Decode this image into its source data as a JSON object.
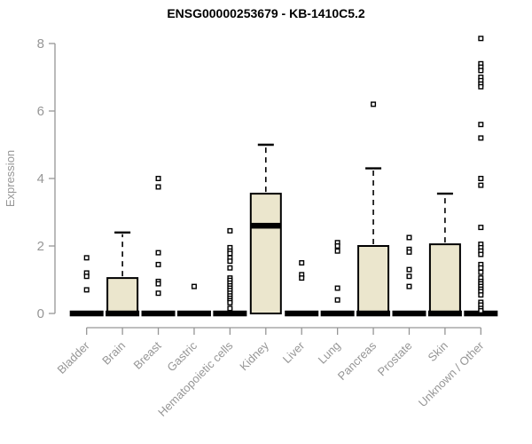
{
  "window": {
    "background": "#ffffff"
  },
  "chart_data": {
    "type": "boxplot",
    "title": "ENSG00000253679 - KB-1410C5.2",
    "ylabel": "Expression",
    "xlabel": "",
    "yticks": [
      0,
      2,
      4,
      6,
      8
    ],
    "ylim": [
      0,
      8.4
    ],
    "grid": false,
    "legend": false,
    "colors": {
      "box_fill": "#ebe6cd",
      "box_stroke": "#000000",
      "median": "#000000",
      "outlier_stroke": "#000000",
      "outlier_fill": "#ffffff",
      "axis": "#969696",
      "tick_label": "#969696",
      "title": "#000000"
    },
    "categories": [
      "Bladder",
      "Brain",
      "Breast",
      "Gastric",
      "Hematopoietic cells",
      "Kidney",
      "Liver",
      "Lung",
      "Pancreas",
      "Prostate",
      "Skin",
      "Unknown / Other"
    ],
    "boxes": [
      {
        "category": "Bladder",
        "q1": 0,
        "median": 0,
        "q3": 0,
        "whisker_low": 0,
        "whisker_high": 0,
        "outliers": [
          1.65,
          1.2,
          1.1,
          0.7
        ]
      },
      {
        "category": "Brain",
        "q1": 0,
        "median": 0,
        "q3": 1.05,
        "whisker_low": 0,
        "whisker_high": 2.4,
        "outliers": []
      },
      {
        "category": "Breast",
        "q1": 0,
        "median": 0,
        "q3": 0,
        "whisker_low": 0,
        "whisker_high": 0,
        "outliers": [
          4.0,
          3.75,
          1.8,
          1.45,
          0.95,
          0.88,
          0.6
        ]
      },
      {
        "category": "Gastric",
        "q1": 0,
        "median": 0,
        "q3": 0,
        "whisker_low": 0,
        "whisker_high": 0,
        "outliers": [
          0.8
        ]
      },
      {
        "category": "Hematopoietic cells",
        "q1": 0,
        "median": 0,
        "q3": 0,
        "whisker_low": 0,
        "whisker_high": 0,
        "outliers": [
          2.45,
          1.95,
          1.85,
          1.78,
          1.65,
          1.55,
          1.35,
          1.05,
          0.98,
          0.9,
          0.82,
          0.75,
          0.68,
          0.6,
          0.52,
          0.45,
          0.38,
          0.32,
          0.15
        ]
      },
      {
        "category": "Kidney",
        "q1": 0,
        "median": 2.6,
        "q3": 3.55,
        "whisker_low": 0,
        "whisker_high": 5.0,
        "outliers": []
      },
      {
        "category": "Liver",
        "q1": 0,
        "median": 0,
        "q3": 0,
        "whisker_low": 0,
        "whisker_high": 0,
        "outliers": [
          1.5,
          1.15,
          1.05
        ]
      },
      {
        "category": "Lung",
        "q1": 0,
        "median": 0,
        "q3": 0,
        "whisker_low": 0,
        "whisker_high": 0,
        "outliers": [
          2.1,
          2.0,
          1.85,
          0.75,
          0.4
        ]
      },
      {
        "category": "Pancreas",
        "q1": 0,
        "median": 0,
        "q3": 2.0,
        "whisker_low": 0,
        "whisker_high": 4.3,
        "outliers": [
          6.2
        ]
      },
      {
        "category": "Prostate",
        "q1": 0,
        "median": 0,
        "q3": 0,
        "whisker_low": 0,
        "whisker_high": 0,
        "outliers": [
          2.25,
          1.9,
          1.82,
          1.3,
          1.1,
          0.8
        ]
      },
      {
        "category": "Skin",
        "q1": 0,
        "median": 0,
        "q3": 2.05,
        "whisker_low": 0,
        "whisker_high": 3.55,
        "outliers": []
      },
      {
        "category": "Unknown / Other",
        "q1": 0,
        "median": 0,
        "q3": 0,
        "whisker_low": 0,
        "whisker_high": 0,
        "outliers": [
          8.15,
          7.4,
          7.3,
          7.2,
          7.0,
          6.9,
          6.8,
          6.72,
          5.6,
          5.2,
          4.0,
          3.8,
          2.55,
          2.05,
          1.95,
          1.85,
          1.75,
          1.45,
          1.35,
          1.22,
          1.05,
          0.95,
          0.88,
          0.8,
          0.72,
          0.65,
          0.55,
          0.33,
          0.25,
          0.15,
          0.08
        ]
      }
    ]
  }
}
